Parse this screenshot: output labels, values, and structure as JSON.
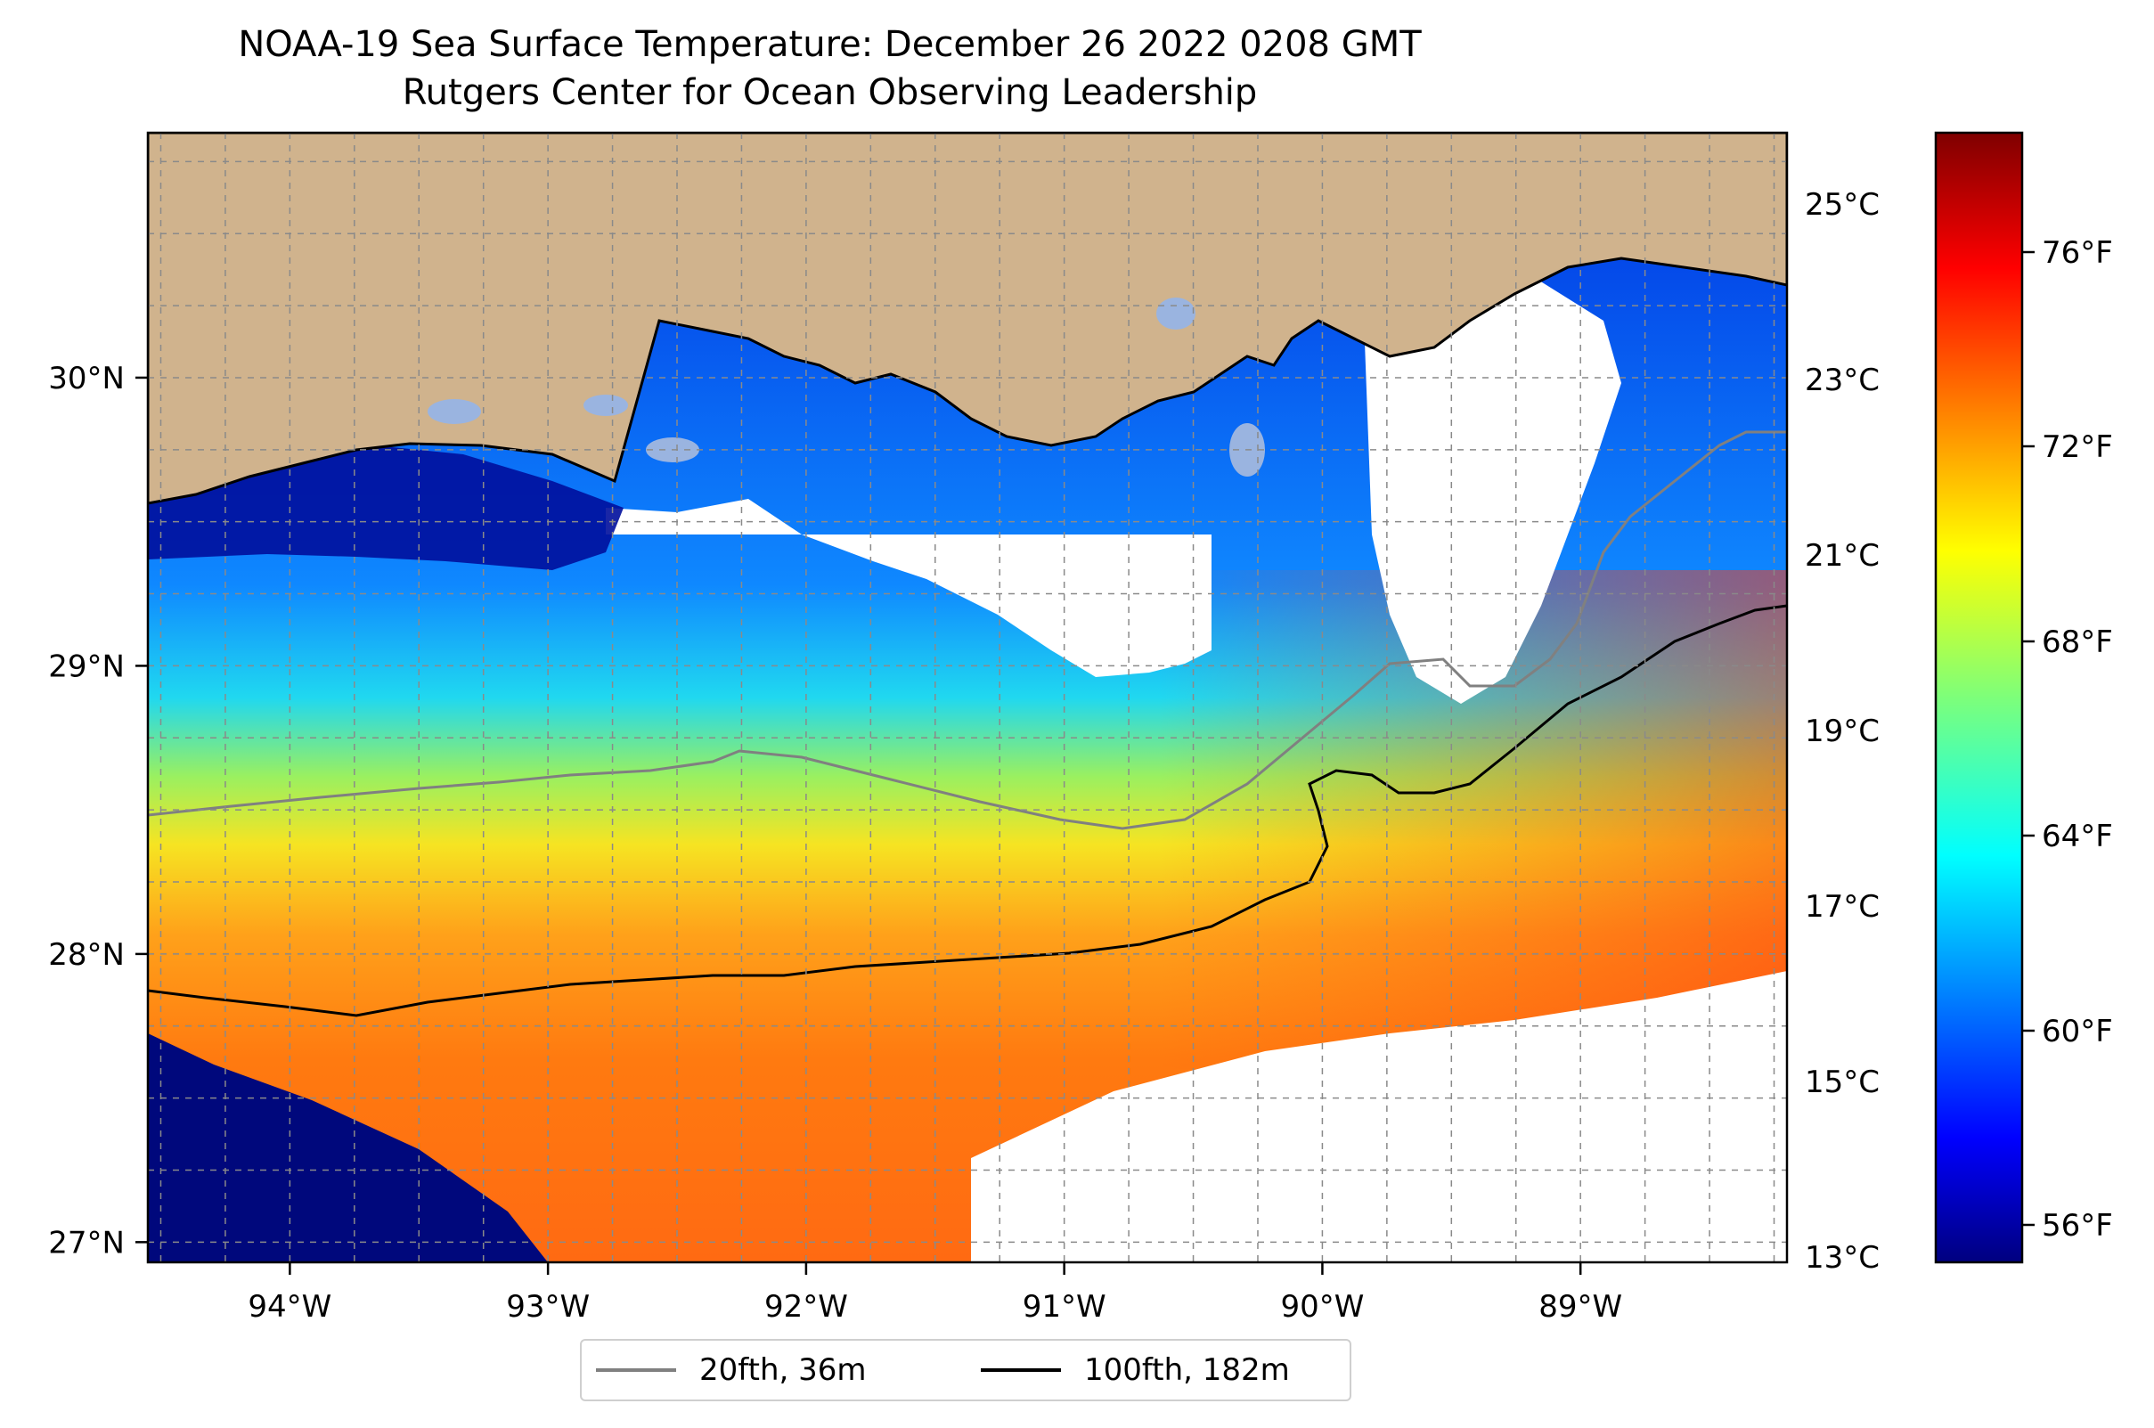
{
  "title_line1": "NOAA-19 Sea Surface Temperature: December 26 2022 0208 GMT",
  "title_line2": "Rutgers Center for Ocean Observing Leadership",
  "map": {
    "lon_range": [
      -94.55,
      -88.2
    ],
    "lat_range": [
      26.93,
      30.85
    ],
    "lon_ticks": [
      -94,
      -93,
      -92,
      -91,
      -90,
      -89
    ],
    "lon_tick_labels": [
      "94°W",
      "93°W",
      "92°W",
      "91°W",
      "90°W",
      "89°W"
    ],
    "lat_ticks": [
      27,
      28,
      29,
      30
    ],
    "lat_tick_labels": [
      "27°N",
      "28°N",
      "29°N",
      "30°N"
    ],
    "gridlines": true,
    "land_color": "#d0b38d",
    "coastline_color": "#000000"
  },
  "contours": [
    {
      "label": "20fth, 36m",
      "color": "#808080"
    },
    {
      "label": "100fth, 182m",
      "color": "#000000"
    }
  ],
  "colorbar": {
    "colormap": "jet",
    "celsius_labels": [
      "25°C",
      "23°C",
      "21°C",
      "19°C",
      "17°C",
      "15°C",
      "13°C"
    ],
    "fahrenheit_labels": [
      "76°F",
      "72°F",
      "68°F",
      "64°F",
      "60°F",
      "56°F"
    ]
  }
}
